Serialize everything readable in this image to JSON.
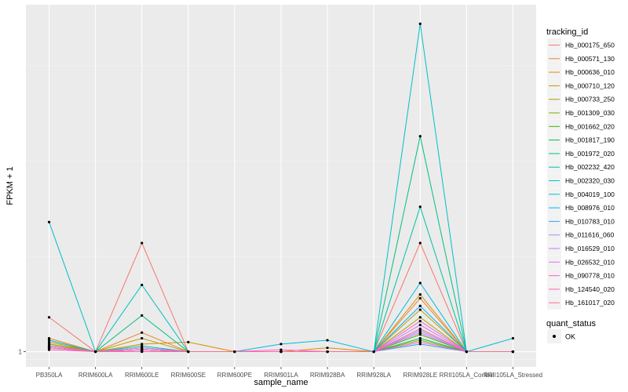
{
  "chart_data": {
    "type": "line",
    "xlabel": "sample_name",
    "ylabel": "FPKM + 1",
    "categories": [
      "PB350LA",
      "RRIM600LA",
      "RRIM600LE",
      "RRIM600SE",
      "RRIM600PE",
      "RRIM901LA",
      "RRIM928BA",
      "RRIM928LA",
      "RRIM928LE",
      "RRII105LA_Control",
      "RRII105LA_Stressed"
    ],
    "yticks": [
      "1"
    ],
    "grid": true,
    "legend_title": "tracking_id",
    "legend_position": "right",
    "series": [
      {
        "name": "Hb_000175_650",
        "color": "#F8766D",
        "values": [
          1.18,
          1,
          1.57,
          1,
          1,
          1,
          1,
          1,
          1.57,
          1,
          1
        ]
      },
      {
        "name": "Hb_000571_130",
        "color": "#EA8331",
        "values": [
          1.07,
          1,
          1.1,
          1,
          1,
          1,
          1,
          1,
          1.28,
          1,
          1
        ]
      },
      {
        "name": "Hb_000636_010",
        "color": "#D89000",
        "values": [
          1.04,
          1,
          1.04,
          1.05,
          1,
          1,
          1.02,
          1,
          1.3,
          1,
          1
        ]
      },
      {
        "name": "Hb_000710_120",
        "color": "#C09B00",
        "values": [
          1.05,
          1,
          1.07,
          1,
          1,
          1,
          1,
          1,
          1.22,
          1,
          1
        ]
      },
      {
        "name": "Hb_000733_250",
        "color": "#A3A500",
        "values": [
          1.06,
          1,
          1.02,
          1,
          1,
          1,
          1,
          1,
          1.18,
          1,
          1
        ]
      },
      {
        "name": "Hb_001309_030",
        "color": "#7CAE00",
        "values": [
          1.04,
          1,
          1.01,
          1,
          1,
          1,
          1,
          1,
          1.06,
          1,
          1
        ]
      },
      {
        "name": "Hb_001662_020",
        "color": "#39B600",
        "values": [
          1.03,
          1,
          1.01,
          1,
          1,
          1,
          1,
          1,
          1.09,
          1,
          1
        ]
      },
      {
        "name": "Hb_001817_190",
        "color": "#00BB4E",
        "values": [
          1.02,
          1,
          1.0,
          1,
          1,
          1,
          1,
          1,
          1.07,
          1,
          1
        ]
      },
      {
        "name": "Hb_001972_020",
        "color": "#00BF7D",
        "values": [
          1.03,
          1,
          1.19,
          1,
          1,
          1,
          1,
          1,
          2.13,
          1,
          1
        ]
      },
      {
        "name": "Hb_002232_420",
        "color": "#00C1A3",
        "values": [
          1.02,
          1,
          1.03,
          1,
          1,
          1,
          1,
          1,
          1.76,
          1,
          1
        ]
      },
      {
        "name": "Hb_002320_030",
        "color": "#00BFC4",
        "values": [
          1.68,
          1,
          1.35,
          1,
          1,
          1,
          1,
          1,
          2.72,
          1,
          1.07
        ]
      },
      {
        "name": "Hb_004019_100",
        "color": "#00BAE0",
        "values": [
          1.06,
          1,
          1.02,
          1,
          1,
          1.04,
          1.06,
          1,
          1.36,
          1,
          1
        ]
      },
      {
        "name": "Hb_008976_010",
        "color": "#00B0F6",
        "values": [
          1.03,
          1,
          1.01,
          1,
          1,
          1,
          1,
          1,
          1.24,
          1,
          1
        ]
      },
      {
        "name": "Hb_010783_010",
        "color": "#35A2FF",
        "values": [
          1.02,
          1,
          1.0,
          1,
          1,
          1,
          1,
          1,
          1.04,
          1,
          1
        ]
      },
      {
        "name": "Hb_011616_060",
        "color": "#9590FF",
        "values": [
          1.02,
          1,
          1.01,
          1,
          1,
          1,
          1,
          1,
          1.11,
          1,
          1
        ]
      },
      {
        "name": "Hb_016529_010",
        "color": "#C77CFF",
        "values": [
          1.03,
          1,
          1.02,
          1,
          1,
          1,
          1,
          1,
          1.14,
          1,
          1
        ]
      },
      {
        "name": "Hb_026532_010",
        "color": "#E76BF3",
        "values": [
          1.02,
          1,
          1.0,
          1,
          1,
          1,
          1,
          1,
          1.1,
          1,
          1
        ]
      },
      {
        "name": "Hb_090778_010",
        "color": "#FA62DB",
        "values": [
          1.03,
          1,
          1.01,
          1,
          1,
          1.01,
          1,
          1,
          1.16,
          1,
          1
        ]
      },
      {
        "name": "Hb_124540_020",
        "color": "#FF62BC",
        "values": [
          1.01,
          1,
          1.0,
          1,
          1,
          1,
          1,
          1,
          1.05,
          1,
          1
        ]
      },
      {
        "name": "Hb_161017_020",
        "color": "#FF6C91",
        "values": [
          1.02,
          1,
          1.01,
          1,
          1,
          1,
          1,
          1,
          1.12,
          1,
          1
        ]
      }
    ],
    "y_domain": [
      0.92,
      2.82
    ],
    "point_legend_title": "quant_status",
    "point_legend_label": "OK"
  }
}
